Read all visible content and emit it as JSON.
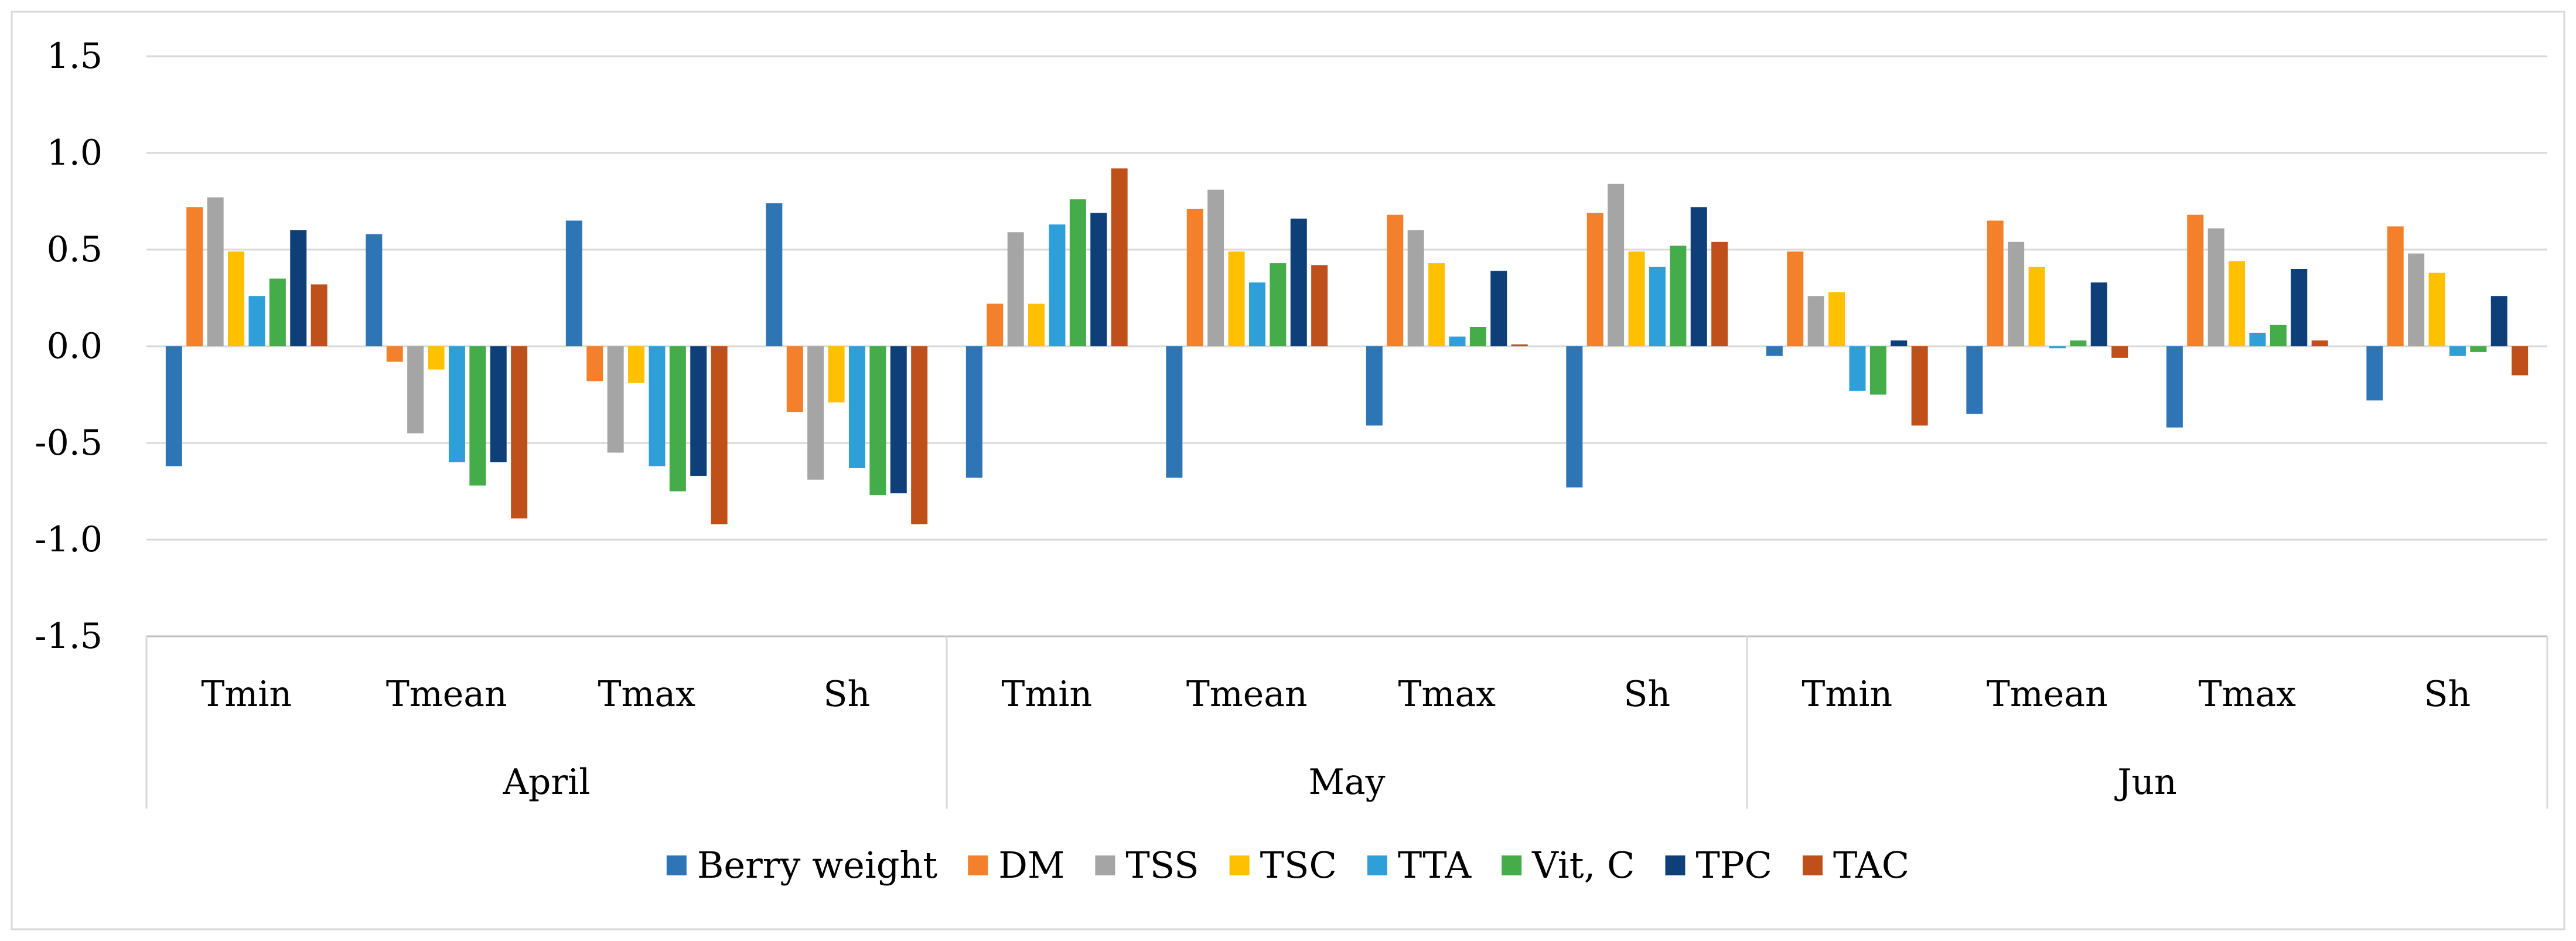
{
  "chart_data": {
    "type": "bar",
    "title": "",
    "xlabel": "",
    "ylabel": "",
    "ylim": [
      -1.5,
      1.5
    ],
    "yticks": [
      1.5,
      1.0,
      0.5,
      0.0,
      -0.5,
      -1.0,
      -1.5
    ],
    "ytick_labels": [
      "1.5",
      "1.0",
      "0.5",
      "0.0",
      "-0.5",
      "-1.0",
      "-1.5"
    ],
    "grid": true,
    "legend_position": "bottom",
    "groups": [
      "April",
      "May",
      "Jun"
    ],
    "categories": [
      "Tmin",
      "Tmean",
      "Tmax",
      "Sh"
    ],
    "series": [
      {
        "name": "Berry weight",
        "color": "#2e75b6",
        "values": [
          [
            -0.62,
            0.58,
            0.65,
            0.74
          ],
          [
            -0.68,
            -0.68,
            -0.41,
            -0.73
          ],
          [
            -0.05,
            -0.35,
            -0.42,
            -0.28
          ]
        ]
      },
      {
        "name": "DM",
        "color": "#f4802c",
        "values": [
          [
            0.72,
            -0.08,
            -0.18,
            -0.34
          ],
          [
            0.22,
            0.71,
            0.68,
            0.69
          ],
          [
            0.49,
            0.65,
            0.68,
            0.62
          ]
        ]
      },
      {
        "name": "TSS",
        "color": "#a5a5a5",
        "values": [
          [
            0.77,
            -0.45,
            -0.55,
            -0.69
          ],
          [
            0.59,
            0.81,
            0.6,
            0.84
          ],
          [
            0.26,
            0.54,
            0.61,
            0.48
          ]
        ]
      },
      {
        "name": "TSC",
        "color": "#ffc000",
        "values": [
          [
            0.49,
            -0.12,
            -0.19,
            -0.29
          ],
          [
            0.22,
            0.49,
            0.43,
            0.49
          ],
          [
            0.28,
            0.41,
            0.44,
            0.38
          ]
        ]
      },
      {
        "name": "TTA",
        "color": "#2e9fd8",
        "values": [
          [
            0.26,
            -0.6,
            -0.62,
            -0.63
          ],
          [
            0.63,
            0.33,
            0.05,
            0.41
          ],
          [
            -0.23,
            -0.01,
            0.07,
            -0.05
          ]
        ]
      },
      {
        "name": "Vit, C",
        "color": "#44ac48",
        "values": [
          [
            0.35,
            -0.72,
            -0.75,
            -0.77
          ],
          [
            0.76,
            0.43,
            0.1,
            0.52
          ],
          [
            -0.25,
            0.03,
            0.11,
            -0.03
          ]
        ]
      },
      {
        "name": "TPC",
        "color": "#0e3f78",
        "values": [
          [
            0.6,
            -0.6,
            -0.67,
            -0.76
          ],
          [
            0.69,
            0.66,
            0.39,
            0.72
          ],
          [
            0.03,
            0.33,
            0.4,
            0.26
          ]
        ]
      },
      {
        "name": "TAC",
        "color": "#c0501a",
        "values": [
          [
            0.32,
            -0.89,
            -0.92,
            -0.92
          ],
          [
            0.92,
            0.42,
            0.01,
            0.54
          ],
          [
            -0.41,
            -0.06,
            0.03,
            -0.15
          ]
        ]
      }
    ]
  }
}
